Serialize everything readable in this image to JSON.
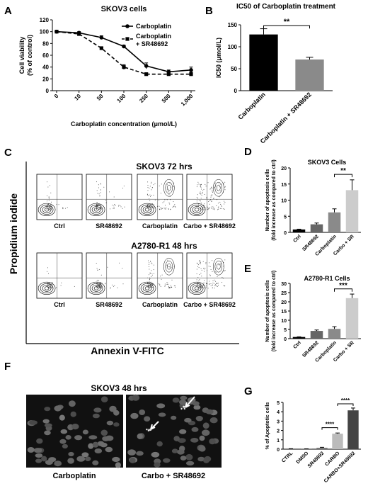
{
  "chart_data": [
    {
      "type": "line",
      "panel": "A",
      "title": "SKOV3 cells",
      "xlabel": "Carboplatin concentration (μmol/L)",
      "ylabel": "Cell viability (% of control)",
      "categories": [
        "0",
        "10",
        "50",
        "100",
        "250",
        "500",
        "1,000"
      ],
      "series": [
        {
          "name": "Carboplatin",
          "values": [
            100,
            98,
            90,
            75,
            42,
            32,
            35
          ],
          "err": [
            2,
            2,
            3,
            2,
            5,
            3,
            5
          ]
        },
        {
          "name": "Carboplatin + SR48692",
          "values": [
            100,
            96,
            72,
            40,
            28,
            28,
            28
          ],
          "err": [
            2,
            2,
            2,
            4,
            2,
            2,
            3
          ]
        }
      ],
      "yticks": [
        0,
        20,
        40,
        60,
        80,
        100,
        120
      ],
      "ylim": [
        0,
        120
      ]
    },
    {
      "type": "bar",
      "panel": "B",
      "title": "IC50 of Carboplatin treatment",
      "ylabel": "IC50 (μmol/L)",
      "categories": [
        "Carboplatin",
        "Carboplatin + SR48692"
      ],
      "values": [
        128,
        71
      ],
      "err": [
        13,
        5
      ],
      "colors": [
        "#000000",
        "#8a8a8a"
      ],
      "yticks": [
        0,
        50,
        100,
        150
      ],
      "ylim": [
        0,
        150
      ],
      "annotation": "**"
    },
    {
      "type": "bar",
      "panel": "D",
      "title": "SKOV3 Cells",
      "ylabel": "Number of apoptosis cells (fold increase as compared to ctrl)",
      "categories": [
        "Ctrl",
        "SR48692",
        "Carboplatin",
        "Carbo + SR"
      ],
      "values": [
        0.9,
        2.5,
        6.2,
        13.1
      ],
      "err": [
        0.1,
        0.4,
        1.1,
        3.2
      ],
      "colors": [
        "#000000",
        "#666666",
        "#8a8a8a",
        "#cccccc"
      ],
      "yticks": [
        0,
        5,
        10,
        15,
        20
      ],
      "ylim": [
        0,
        20
      ],
      "annotation": "**"
    },
    {
      "type": "bar",
      "panel": "E",
      "title": "A2780-R1 Cells",
      "ylabel": "Number of apoptosis cells (fold increase as compared to ctrl)",
      "categories": [
        "Ctrl",
        "SR48692",
        "Carboplatin",
        "Carbo + SR"
      ],
      "values": [
        0.9,
        4.2,
        5.3,
        22
      ],
      "err": [
        0.1,
        0.5,
        1.2,
        2.2
      ],
      "colors": [
        "#000000",
        "#666666",
        "#8a8a8a",
        "#cccccc"
      ],
      "yticks": [
        0,
        5,
        10,
        15,
        20,
        25,
        30
      ],
      "ylim": [
        0,
        30
      ],
      "annotation": "***"
    },
    {
      "type": "bar",
      "panel": "G",
      "ylabel": "% of Apoptotic cells",
      "categories": [
        "CTRL",
        "DMSO",
        "SR48692",
        "CARBO",
        "CARBO+SR48692"
      ],
      "values": [
        0.03,
        0.02,
        0.15,
        1.65,
        4.15
      ],
      "err": [
        0.02,
        0.02,
        0.05,
        0.08,
        0.25
      ],
      "colors": [
        "#000000",
        "#555555",
        "#777777",
        "#bbbbbb",
        "#444444"
      ],
      "yticks": [
        0,
        1,
        2,
        3,
        4,
        5
      ],
      "ylim": [
        0,
        5
      ],
      "annotations": [
        "****",
        "****"
      ]
    }
  ],
  "panel_letters": [
    "A",
    "B",
    "C",
    "D",
    "E",
    "F",
    "G"
  ],
  "flow": {
    "title_top": "SKOV3 72 hrs",
    "title_bottom": "A2780-R1 48 hrs",
    "ylabel": "Propidium iodide",
    "xlabel": "Annexin V-FITC",
    "labels": [
      "Ctrl",
      "SR48692",
      "Carboplatin",
      "Carbo + SR48692"
    ]
  },
  "micro": {
    "title": "SKOV3 48 hrs",
    "labels": [
      "Carboplatin",
      "Carbo + SR48692"
    ]
  }
}
